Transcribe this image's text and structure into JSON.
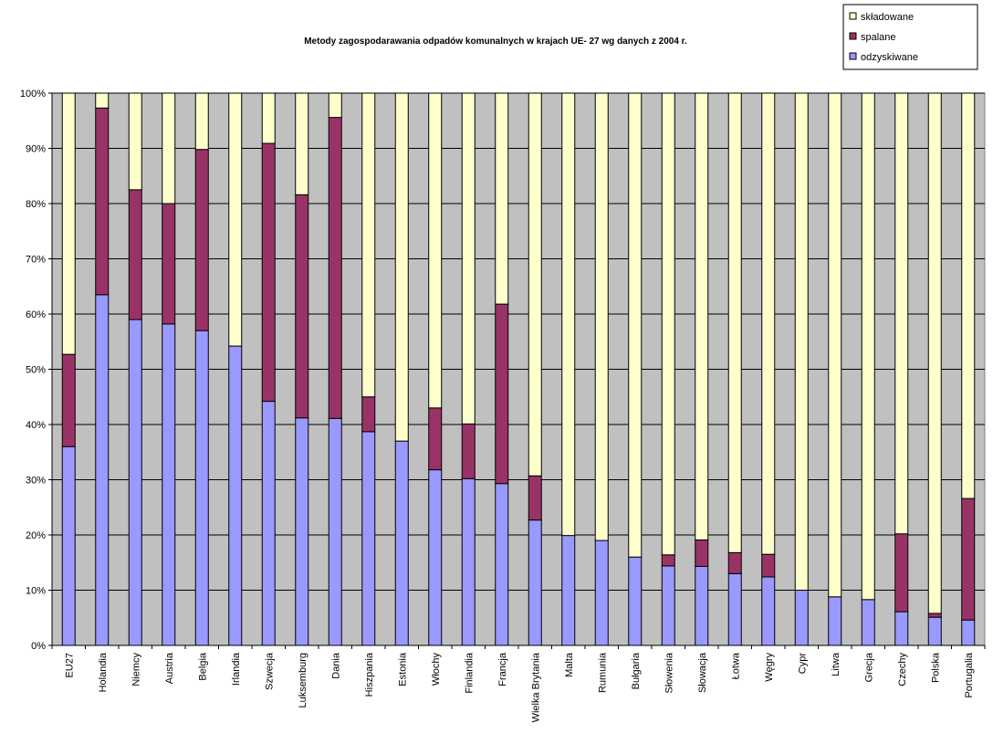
{
  "chart_data": {
    "type": "bar",
    "stacked": true,
    "title": "Metody zagospodarawania odpadów komunalnych w krajach UE- 27 wg danych z 2004 r.",
    "xlabel": "",
    "ylabel": "",
    "ylim": [
      0,
      100
    ],
    "y_ticks": [
      "0%",
      "10%",
      "20%",
      "30%",
      "40%",
      "50%",
      "60%",
      "70%",
      "80%",
      "90%",
      "100%"
    ],
    "grid": true,
    "legend_position": "top-right",
    "plot_background": "#c0c0c0",
    "categories": [
      "EU27",
      "Holandia",
      "Niemcy",
      "Austria",
      "Belgia",
      "Irlandia",
      "Szwecja",
      "Luksemburg",
      "Dania",
      "Hiszpania",
      "Estonia",
      "Włochy",
      "Finlandia",
      "Francja",
      "Wielka Brytania",
      "Malta",
      "Rumunia",
      "Bułgaria",
      "Słowenia",
      "Słowacja",
      "Łotwa",
      "Węgry",
      "Cypr",
      "Litwa",
      "Grecja",
      "Czechy",
      "Polska",
      "Portugalia"
    ],
    "series": [
      {
        "name": "odzyskiwane",
        "color": "#9999ff",
        "values": [
          36,
          63.5,
          59,
          58.2,
          57,
          54.2,
          44.2,
          41.2,
          41.1,
          38.7,
          37,
          31.8,
          30.2,
          29.3,
          22.7,
          19.9,
          19,
          16,
          14.4,
          14.3,
          13,
          12.4,
          10,
          8.8,
          8.3,
          6.1,
          5.1,
          4.6
        ]
      },
      {
        "name": "spalane",
        "color": "#993366",
        "values": [
          16.7,
          33.8,
          23.5,
          21.8,
          32.8,
          0,
          46.7,
          40.4,
          54.5,
          6.3,
          0,
          11.2,
          9.9,
          32.5,
          8,
          0,
          0,
          0,
          2,
          4.8,
          3.8,
          4.1,
          0,
          0,
          0,
          14.1,
          0.7,
          22
        ]
      },
      {
        "name": "składowane",
        "color": "#ffffcc",
        "values": [
          47.3,
          2.7,
          17.5,
          20,
          10.2,
          45.8,
          9.1,
          18.4,
          4.4,
          55,
          63,
          57,
          59.9,
          38.2,
          69.3,
          80.1,
          81,
          84,
          83.6,
          80.9,
          83.2,
          83.5,
          90,
          91.2,
          91.7,
          79.8,
          94.2,
          73.4
        ]
      }
    ],
    "legend_order": [
      "składowane",
      "spalane",
      "odzyskiwane"
    ]
  }
}
